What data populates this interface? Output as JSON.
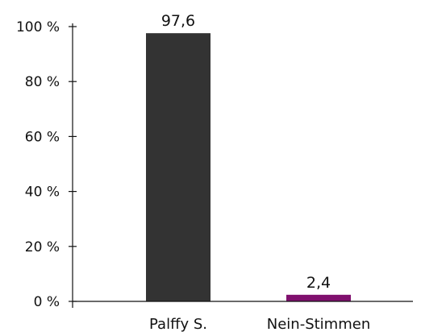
{
  "chart_data": {
    "type": "bar",
    "categories": [
      "Palffy S.",
      "Nein-Stimmen"
    ],
    "values": [
      97.6,
      2.4
    ],
    "data_labels": [
      "97,6",
      "2,4"
    ],
    "colors": [
      "#333333",
      "#80106e"
    ],
    "ylim": [
      0,
      100
    ],
    "yticks": [
      0,
      20,
      40,
      60,
      80,
      100
    ],
    "ytick_labels": [
      "0 %",
      "20 %",
      "40 %",
      "60 %",
      "80 %",
      "100 %"
    ],
    "grid": false,
    "legend": "none",
    "title": "",
    "xlabel": "",
    "ylabel": ""
  }
}
